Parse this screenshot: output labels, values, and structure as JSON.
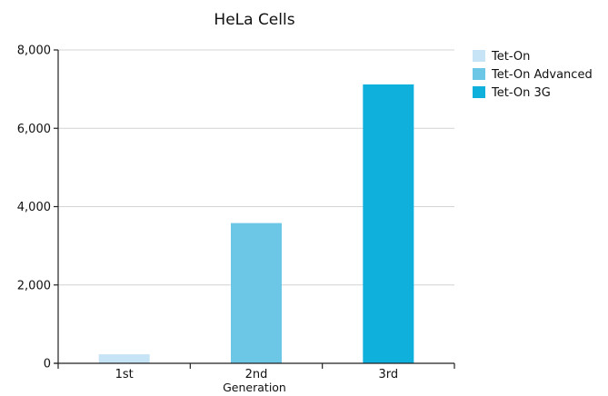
{
  "chart_data": {
    "type": "bar",
    "title": "HeLa Cells",
    "xlabel": "Generation",
    "ylabel": "",
    "categories": [
      "1st",
      "2nd",
      "3rd"
    ],
    "values": [
      230,
      3580,
      7120
    ],
    "bar_colors": [
      "#c6e4f5",
      "#6cc6e6",
      "#0fb0dc"
    ],
    "ylim": [
      0,
      8000
    ],
    "yticks": [
      0,
      2000,
      4000,
      6000,
      8000
    ],
    "ytick_labels": [
      "0",
      "2,000",
      "4,000",
      "6,000",
      "8,000"
    ],
    "grid": true,
    "legend_position": "top-right",
    "legend": [
      {
        "label": "Tet-On",
        "color": "#c6e4f5"
      },
      {
        "label": "Tet-On Advanced",
        "color": "#6cc6e6"
      },
      {
        "label": "Tet-On 3G",
        "color": "#0fb0dc"
      }
    ]
  },
  "colors": {
    "gridline": "#d4d4d4",
    "axis": "#222222",
    "text": "#111111"
  }
}
